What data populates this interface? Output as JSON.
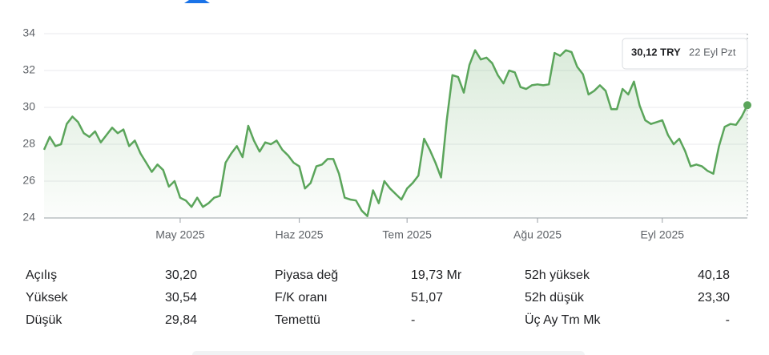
{
  "chart_data": {
    "type": "line",
    "color": "#5ba55b",
    "values": [
      27.7,
      28.4,
      27.9,
      28.0,
      29.1,
      29.5,
      29.2,
      28.6,
      28.4,
      28.7,
      28.1,
      28.5,
      28.9,
      28.6,
      28.8,
      27.9,
      28.2,
      27.5,
      27.0,
      26.5,
      26.9,
      26.6,
      25.7,
      26.0,
      25.1,
      24.95,
      24.6,
      25.1,
      24.6,
      24.8,
      25.1,
      25.2,
      27.0,
      27.5,
      27.9,
      27.3,
      29.0,
      28.2,
      27.6,
      28.1,
      28.0,
      28.2,
      27.7,
      27.4,
      27.0,
      26.8,
      25.6,
      25.9,
      26.8,
      26.9,
      27.2,
      27.2,
      26.4,
      25.1,
      25.0,
      24.95,
      24.4,
      24.1,
      25.5,
      24.8,
      26.0,
      25.6,
      25.3,
      25.0,
      25.6,
      25.9,
      26.3,
      28.3,
      27.7,
      27.0,
      26.2,
      29.3,
      31.75,
      31.65,
      30.8,
      32.3,
      33.1,
      32.6,
      32.7,
      32.4,
      31.75,
      31.3,
      32.0,
      31.9,
      31.1,
      31.0,
      31.2,
      31.25,
      31.2,
      31.25,
      32.95,
      32.8,
      33.1,
      33.0,
      32.2,
      31.8,
      30.7,
      30.9,
      31.2,
      30.9,
      29.9,
      29.9,
      31.0,
      30.7,
      31.4,
      30.1,
      29.3,
      29.1,
      29.2,
      29.3,
      28.5,
      28.0,
      28.3,
      27.65,
      26.8,
      26.9,
      26.8,
      26.55,
      26.4,
      27.9,
      28.95,
      29.1,
      29.05,
      29.5,
      30.12
    ],
    "xlim": [
      0,
      124
    ],
    "xticks": [
      {
        "value": 24,
        "label": "May 2025"
      },
      {
        "value": 45,
        "label": "Haz 2025"
      },
      {
        "value": 64,
        "label": "Tem 2025"
      },
      {
        "value": 87,
        "label": "Ağu 2025"
      },
      {
        "value": 109,
        "label": "Eyl 2025"
      }
    ],
    "ylim": [
      24,
      34
    ],
    "yticks": [
      24,
      26,
      28,
      30,
      32,
      34
    ],
    "grid": true,
    "tooltip": {
      "value_label": "30,12 TRY",
      "date": "22 Eyl Pzt"
    }
  },
  "stats": [
    [
      {
        "label": "Açılış",
        "value": "30,20"
      },
      {
        "label": "Yüksek",
        "value": "30,54"
      },
      {
        "label": "Düşük",
        "value": "29,84"
      }
    ],
    [
      {
        "label": "Piyasa değ",
        "value": "19,73 Mr"
      },
      {
        "label": "F/K oranı",
        "value": "51,07"
      },
      {
        "label": "Temettü",
        "value": "-"
      }
    ],
    [
      {
        "label": "52h yüksek",
        "value": "40,18"
      },
      {
        "label": "52h düşük",
        "value": "23,30"
      },
      {
        "label": "Üç Ay Tm Mk",
        "value": "-"
      }
    ]
  ]
}
